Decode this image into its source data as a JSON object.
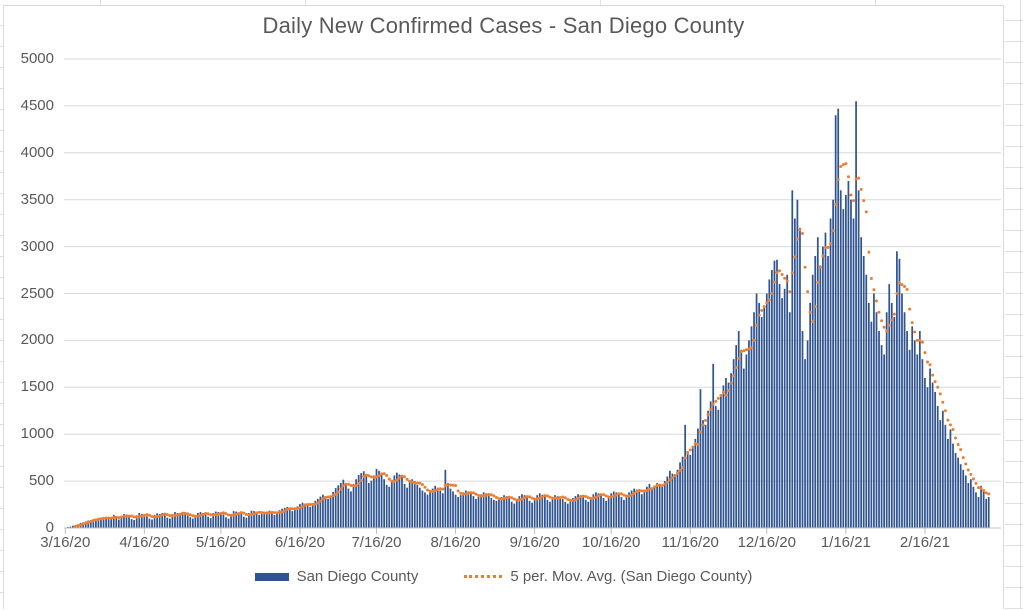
{
  "chart": {
    "title": "Daily New Confirmed Cases - San Diego County",
    "colors": {
      "bar": "#2F5491",
      "moving_avg": "#ED7D31",
      "text": "#595959",
      "gridline": "#D9D9D9",
      "axis": "#BFBFBF",
      "frame_border": "#D9D9D9",
      "sheet_line": "#DCE0E5"
    },
    "legend": [
      {
        "label": "San Diego County",
        "swatch": "bar"
      },
      {
        "label": "5 per. Mov. Avg. (San Diego County)",
        "swatch": "dotted-line"
      }
    ]
  },
  "chart_data": {
    "type": "bar",
    "title": "Daily New Confirmed Cases - San Diego County",
    "xlabel": "",
    "ylabel": "",
    "grid": "horizontal",
    "y": {
      "min": 0,
      "max": 5000,
      "tick_step": 500,
      "ticks": [
        0,
        500,
        1000,
        1500,
        2000,
        2500,
        3000,
        3500,
        4000,
        4500,
        5000
      ]
    },
    "x": {
      "unit": "day",
      "start_date": "3/16/20",
      "end_date": "3/13/21",
      "tick_labels": [
        "3/16/20",
        "4/16/20",
        "5/16/20",
        "6/16/20",
        "7/16/20",
        "8/16/20",
        "9/16/20",
        "10/16/20",
        "11/16/20",
        "12/16/20",
        "1/16/21",
        "2/16/21"
      ],
      "tick_indices": [
        0,
        31,
        61,
        92,
        122,
        153,
        184,
        214,
        245,
        275,
        306,
        337
      ]
    },
    "series": [
      {
        "name": "San Diego County",
        "type": "bar",
        "values": [
          5,
          10,
          15,
          25,
          30,
          40,
          55,
          60,
          70,
          80,
          85,
          95,
          100,
          105,
          110,
          100,
          115,
          105,
          95,
          140,
          120,
          90,
          130,
          150,
          145,
          120,
          95,
          85,
          135,
          160,
          150,
          140,
          125,
          100,
          90,
          140,
          155,
          150,
          160,
          140,
          110,
          100,
          150,
          170,
          160,
          150,
          160,
          145,
          135,
          115,
          100,
          130,
          160,
          170,
          160,
          150,
          120,
          105,
          160,
          175,
          170,
          160,
          145,
          115,
          100,
          150,
          180,
          175,
          165,
          150,
          120,
          110,
          160,
          185,
          180,
          170,
          140,
          150,
          160,
          175,
          185,
          160,
          140,
          155,
          190,
          205,
          215,
          225,
          200,
          180,
          205,
          230,
          255,
          270,
          260,
          240,
          225,
          265,
          290,
          310,
          335,
          355,
          340,
          310,
          335,
          385,
          425,
          455,
          480,
          515,
          460,
          420,
          390,
          470,
          520,
          565,
          585,
          605,
          550,
          480,
          505,
          560,
          630,
          610,
          580,
          520,
          460,
          440,
          505,
          560,
          590,
          570,
          540,
          470,
          430,
          485,
          520,
          500,
          460,
          430,
          400,
          380,
          355,
          390,
          420,
          450,
          430,
          400,
          370,
          620,
          480,
          420,
          390,
          355,
          330,
          350,
          380,
          400,
          390,
          365,
          340,
          310,
          330,
          360,
          380,
          370,
          345,
          320,
          300,
          290,
          310,
          330,
          350,
          340,
          315,
          280,
          260,
          300,
          340,
          360,
          350,
          325,
          290,
          270,
          310,
          350,
          370,
          355,
          340,
          300,
          280,
          320,
          350,
          340,
          330,
          310,
          280,
          260,
          300,
          320,
          340,
          360,
          350,
          330,
          300,
          280,
          320,
          360,
          380,
          370,
          350,
          320,
          290,
          330,
          370,
          390,
          380,
          355,
          330,
          300,
          340,
          380,
          400,
          420,
          410,
          390,
          360,
          400,
          440,
          470,
          430,
          450,
          480,
          460,
          440,
          500,
          550,
          610,
          580,
          560,
          620,
          700,
          760,
          1100,
          820,
          780,
          850,
          950,
          1060,
          1480,
          1150,
          1100,
          1250,
          1350,
          1750,
          1300,
          1260,
          1400,
          1520,
          1600,
          1550,
          1650,
          1800,
          1950,
          2100,
          1900,
          1700,
          1850,
          2000,
          2150,
          2300,
          2500,
          2400,
          2250,
          2350,
          2500,
          2650,
          2750,
          2850,
          2860,
          2600,
          2450,
          2550,
          2700,
          2300,
          3600,
          3300,
          3500,
          3200,
          2100,
          1800,
          2000,
          2400,
          2700,
          2900,
          3100,
          2800,
          3000,
          3150,
          2900,
          3300,
          3500,
          4400,
          4470,
          3600,
          3400,
          3550,
          3700,
          3500,
          3300,
          4550,
          3600,
          3100,
          2900,
          2700,
          2400,
          2200,
          2500,
          2300,
          2100,
          1950,
          1850,
          2300,
          2600,
          2400,
          2250,
          2950,
          2870,
          2500,
          2300,
          2100,
          1900,
          2150,
          2000,
          1850,
          2100,
          1800,
          1600,
          1500,
          1700,
          1550,
          1450,
          1300,
          1150,
          1250,
          1100,
          950,
          1050,
          900,
          800,
          750,
          680,
          620,
          560,
          480,
          520,
          440,
          380,
          330,
          450,
          400,
          310,
          330
        ]
      }
    ],
    "overlay": {
      "name": "5 per. Mov. Avg. (San Diego County)",
      "type": "moving_average",
      "period": 5,
      "style": "dotted"
    }
  }
}
